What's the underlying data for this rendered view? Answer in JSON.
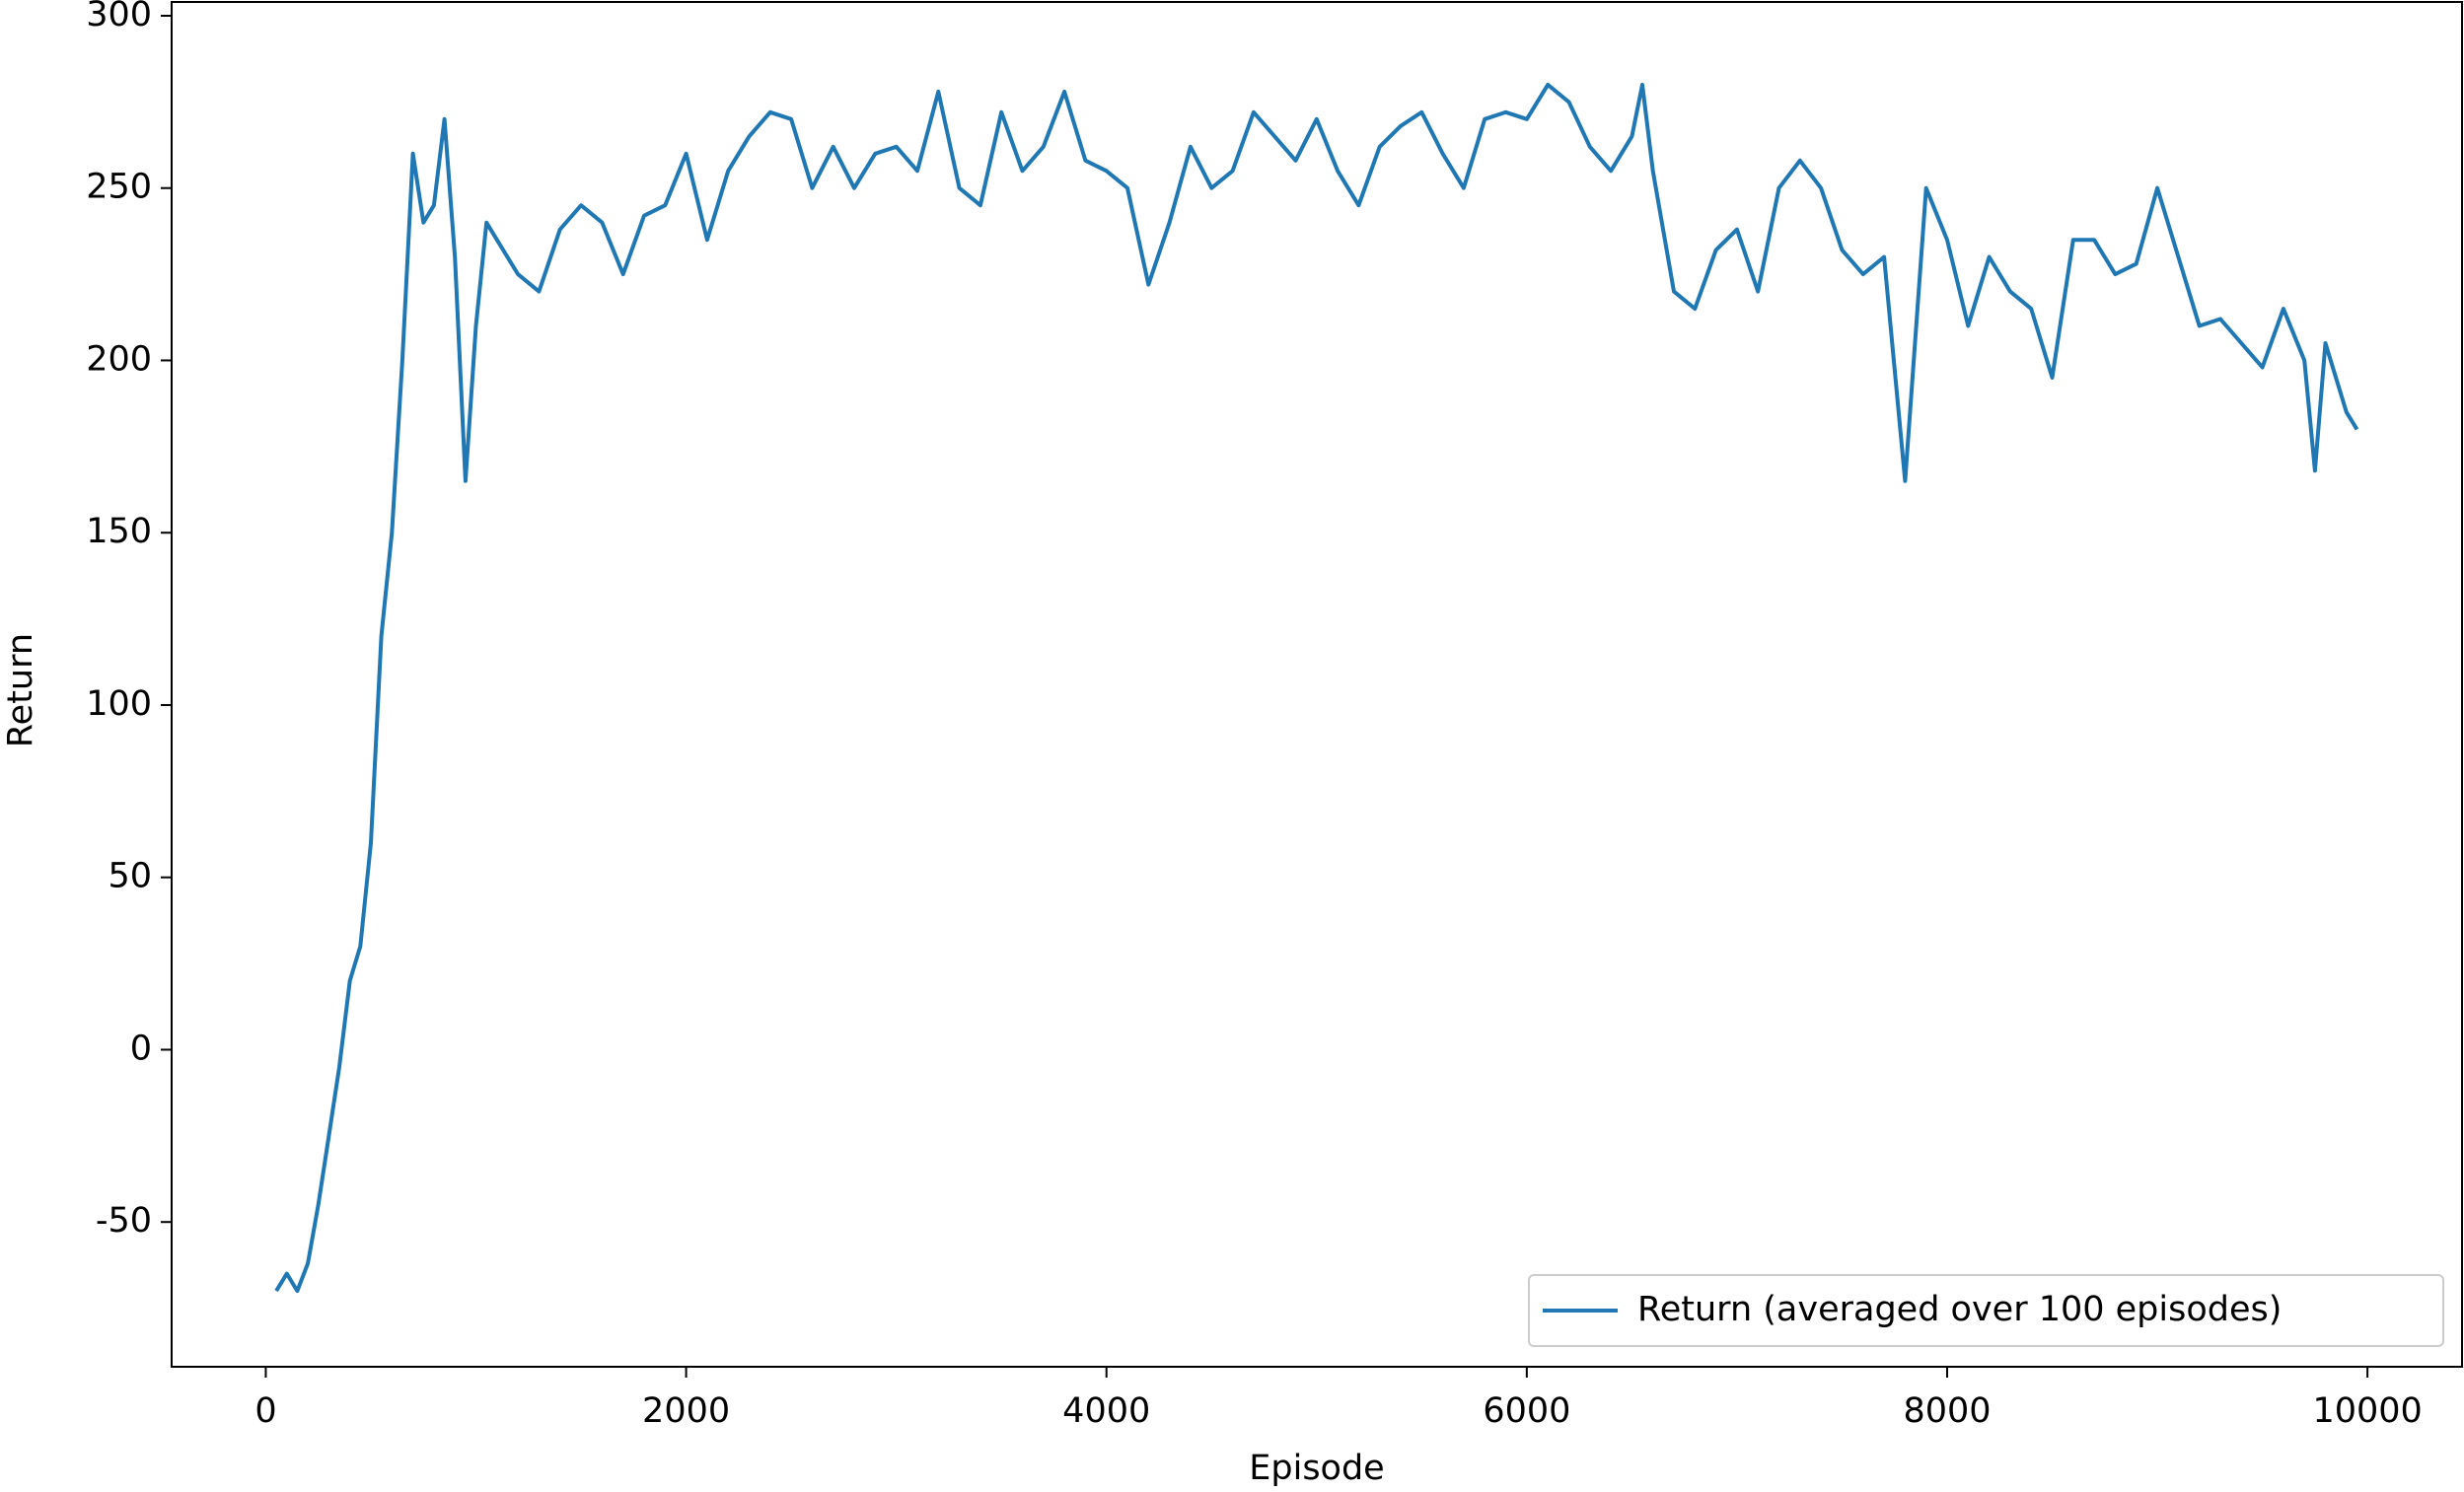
{
  "chart_data": {
    "type": "line",
    "x_label": "Episode",
    "y_label": "Return",
    "x": [
      50,
      100,
      150,
      200,
      250,
      300,
      350,
      400,
      450,
      500,
      550,
      600,
      650,
      700,
      750,
      800,
      850,
      900,
      950,
      1000,
      1050,
      1100,
      1200,
      1300,
      1400,
      1500,
      1600,
      1700,
      1800,
      1900,
      2000,
      2100,
      2200,
      2300,
      2400,
      2500,
      2600,
      2700,
      2800,
      2900,
      3000,
      3100,
      3200,
      3300,
      3400,
      3500,
      3600,
      3700,
      3800,
      3900,
      4000,
      4100,
      4200,
      4300,
      4400,
      4500,
      4600,
      4700,
      4800,
      4900,
      5000,
      5100,
      5200,
      5300,
      5400,
      5500,
      5600,
      5700,
      5800,
      5900,
      6000,
      6100,
      6200,
      6300,
      6400,
      6500,
      6550,
      6600,
      6700,
      6800,
      6900,
      7000,
      7100,
      7200,
      7300,
      7400,
      7500,
      7600,
      7700,
      7800,
      7900,
      8000,
      8100,
      8200,
      8300,
      8400,
      8500,
      8600,
      8700,
      8800,
      8900,
      9000,
      9100,
      9200,
      9300,
      9400,
      9500,
      9600,
      9700,
      9750,
      9800,
      9900,
      9950
    ],
    "series": [
      {
        "name": "Return (averaged over 100 episodes)",
        "color": "#1f77b4",
        "values": [
          -70,
          -65,
          -70,
          -62,
          -45,
          -25,
          -5,
          20,
          30,
          60,
          120,
          150,
          200,
          260,
          240,
          245,
          270,
          230,
          165,
          210,
          240,
          235,
          225,
          220,
          238,
          245,
          240,
          225,
          242,
          245,
          260,
          235,
          255,
          265,
          272,
          270,
          250,
          262,
          250,
          260,
          262,
          255,
          278,
          250,
          245,
          272,
          255,
          262,
          278,
          258,
          255,
          250,
          222,
          240,
          262,
          250,
          255,
          272,
          265,
          258,
          270,
          255,
          245,
          262,
          268,
          272,
          260,
          250,
          270,
          272,
          270,
          280,
          275,
          262,
          255,
          265,
          280,
          255,
          220,
          215,
          232,
          238,
          220,
          250,
          258,
          250,
          232,
          225,
          230,
          165,
          250,
          235,
          210,
          230,
          220,
          215,
          195,
          235,
          235,
          225,
          228,
          250,
          230,
          210,
          212,
          205,
          198,
          215,
          200,
          168,
          205,
          185,
          180
        ]
      }
    ],
    "xlim": [
      -448,
      10450
    ],
    "ylim": [
      -92,
      304
    ],
    "xticks": [
      0,
      2000,
      4000,
      6000,
      8000,
      10000
    ],
    "yticks": [
      -50,
      0,
      50,
      100,
      150,
      200,
      250,
      300
    ],
    "legend": "lower right"
  }
}
